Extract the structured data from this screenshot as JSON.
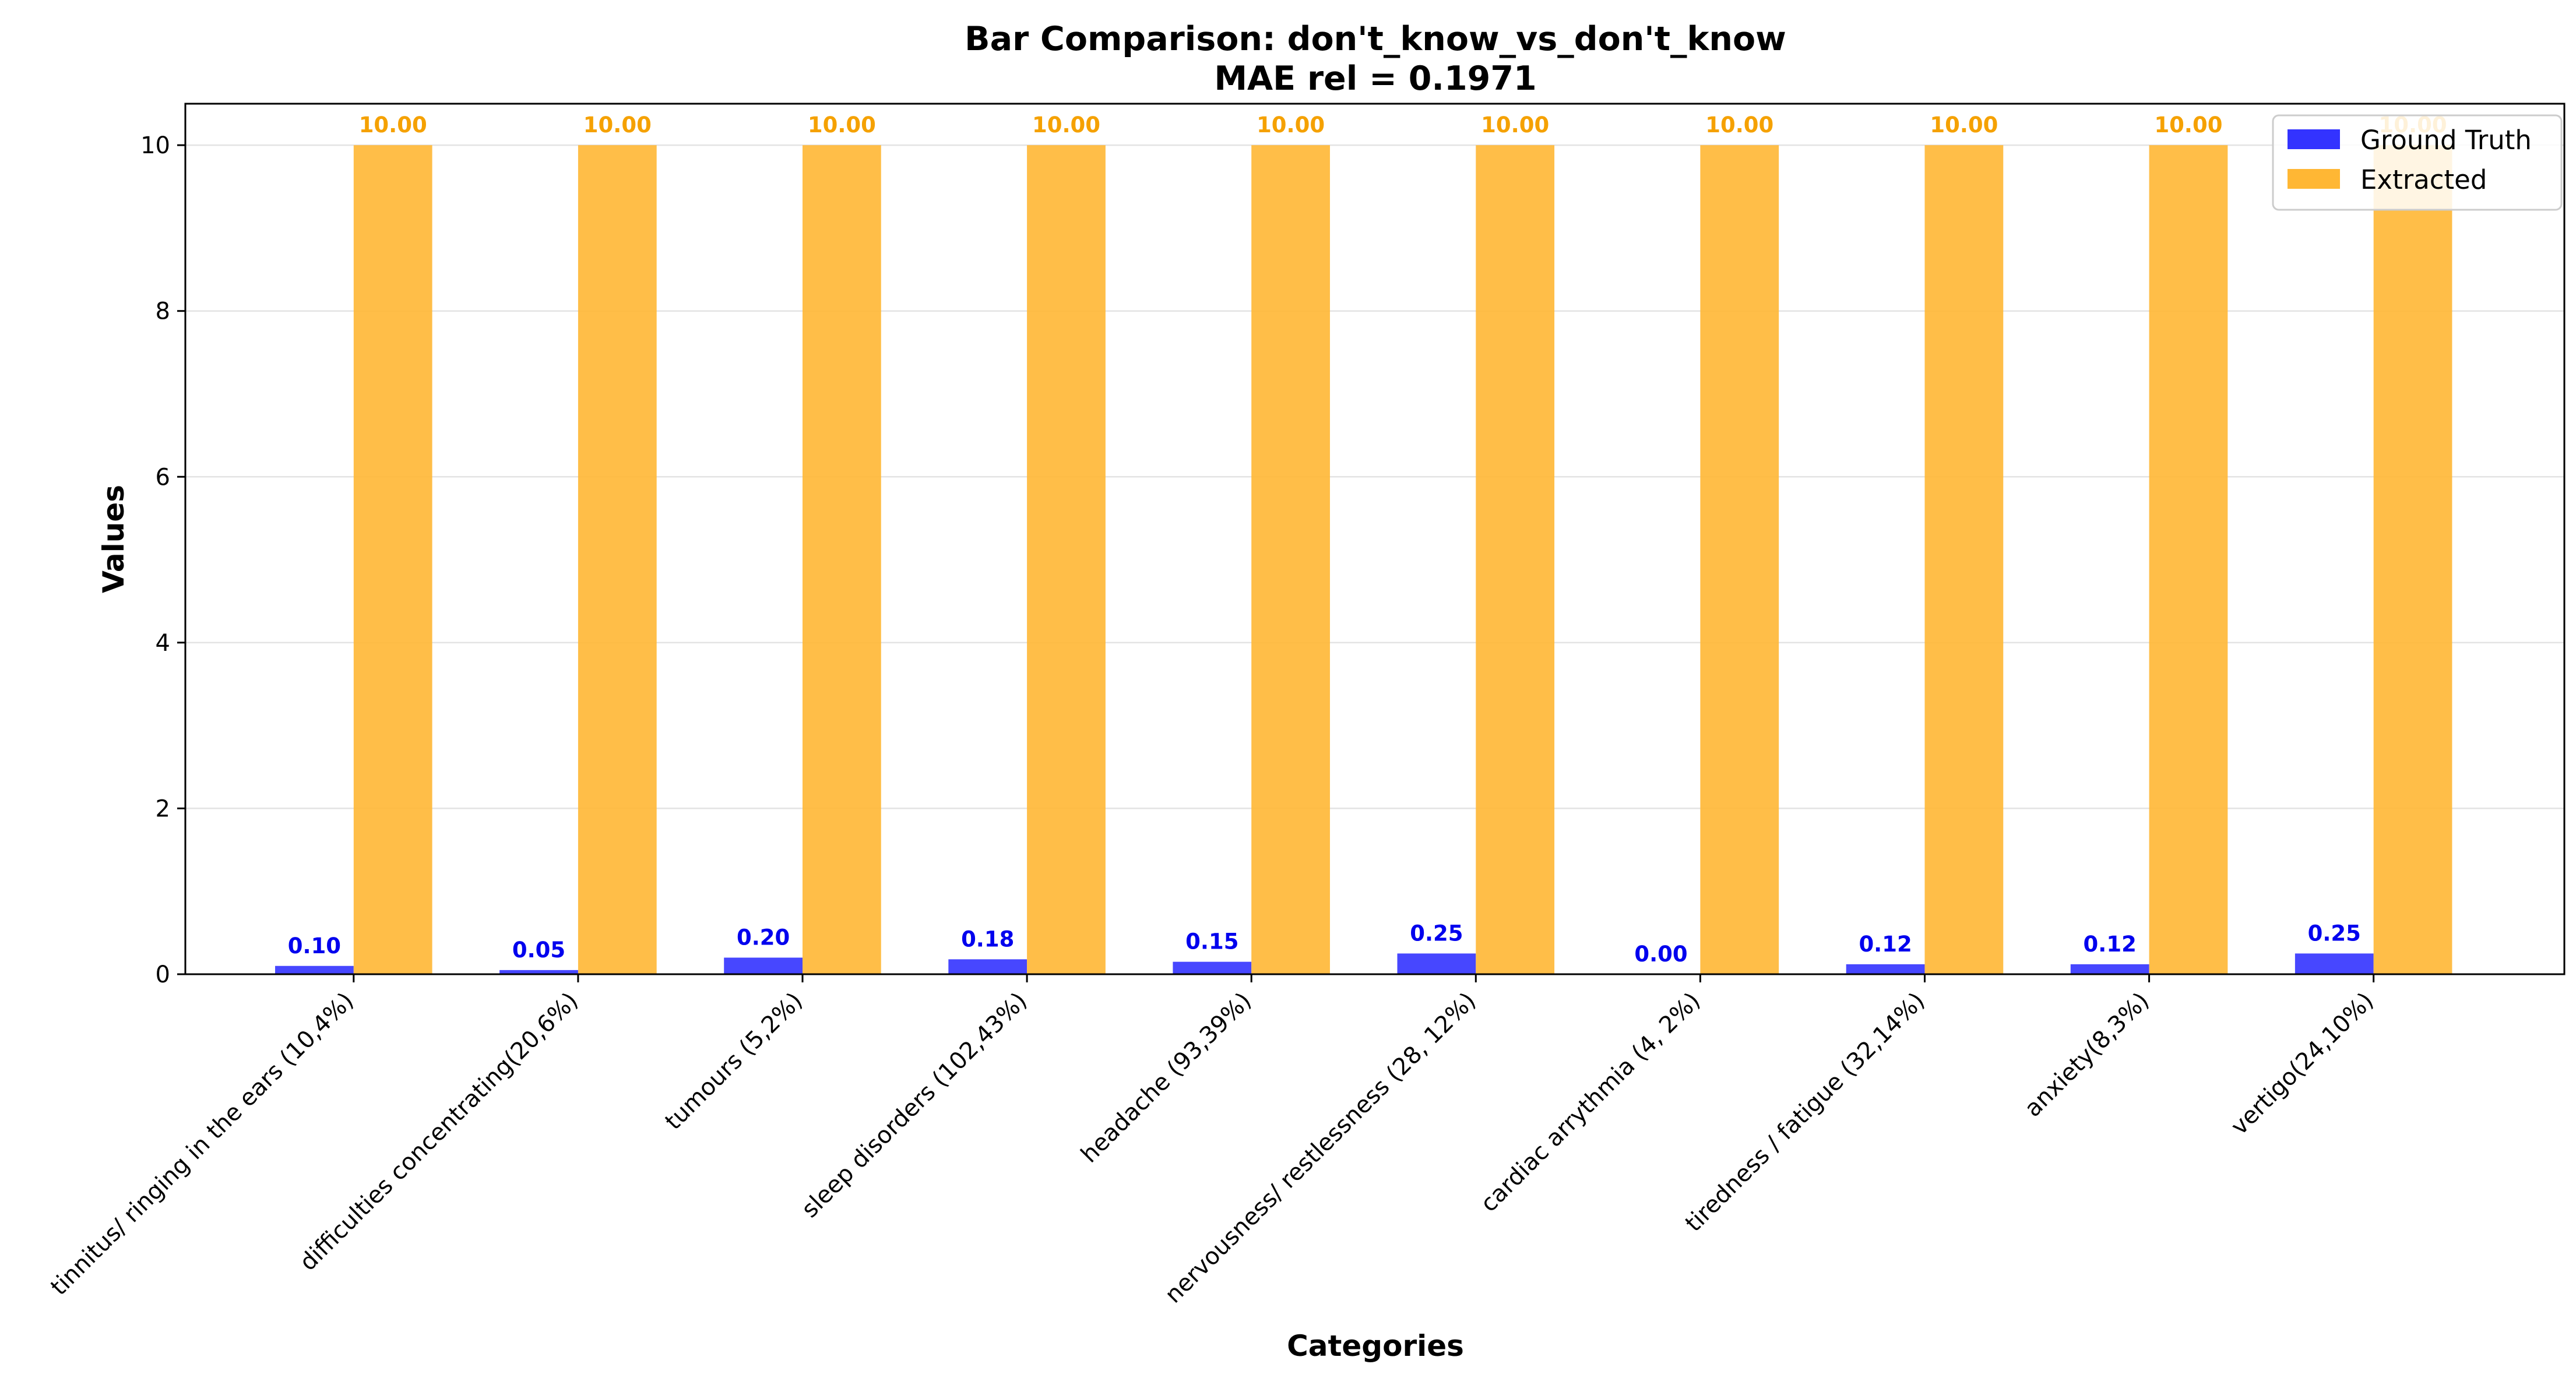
{
  "chart_data": {
    "type": "bar",
    "title_line1": "Bar Comparison: don't_know_vs_don't_know",
    "title_line2": "MAE rel = 0.1971",
    "xlabel": "Categories",
    "ylabel": "Values",
    "ylim": [
      0,
      10.5
    ],
    "yticks": [
      0,
      2,
      4,
      6,
      8,
      10
    ],
    "grid": "horizontal",
    "legend_position": "top-right",
    "categories": [
      "tinnitus/ ringing in the ears (10,4%)",
      "difficulties concentrating(20,6%)",
      "tumours (5,2%)",
      "sleep disorders (102,43%)",
      "headache (93,39%)",
      "nervousness/ restlessness (28, 12%)",
      "cardiac arrythmia (4, 2%)",
      "tiredness / fatigue (32,14%)",
      "anxiety(8,3%)",
      "vertigo(24,10%)"
    ],
    "series": [
      {
        "name": "Ground Truth",
        "color": "#3333ff",
        "label_color": "#0000ee",
        "values": [
          0.1,
          0.05,
          0.2,
          0.18,
          0.15,
          0.25,
          0.0,
          0.12,
          0.12,
          0.25
        ],
        "labels": [
          "0.10",
          "0.05",
          "0.20",
          "0.18",
          "0.15",
          "0.25",
          "0.00",
          "0.12",
          "0.12",
          "0.25"
        ]
      },
      {
        "name": "Extracted",
        "color": "#ffb734",
        "label_color": "#f5a100",
        "values": [
          10,
          10,
          10,
          10,
          10,
          10,
          10,
          10,
          10,
          10
        ],
        "labels": [
          "10.00",
          "10.00",
          "10.00",
          "10.00",
          "10.00",
          "10.00",
          "10.00",
          "10.00",
          "10.00",
          "10.00"
        ]
      }
    ]
  }
}
